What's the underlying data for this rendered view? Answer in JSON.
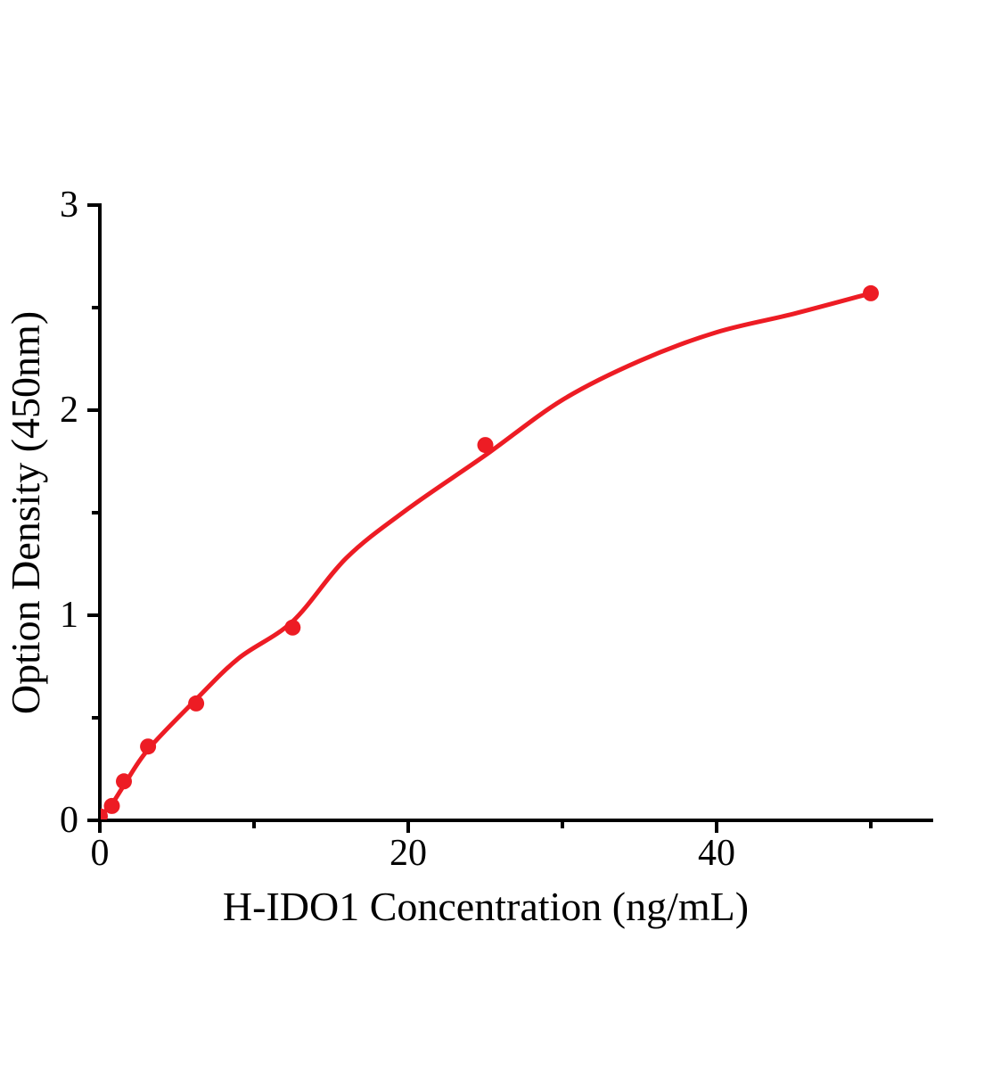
{
  "figure": {
    "background_color": "#ffffff",
    "axis_color": "#000000",
    "accent_color": "#ED1C24"
  },
  "chart_data": {
    "type": "scatter",
    "title": "",
    "xlabel": "H-IDO1 Concentration (ng/mL)",
    "ylabel": "Option Density (450nm)",
    "grid": false,
    "legend": "none",
    "x_axis": {
      "range": [
        0,
        54
      ],
      "major_ticks": [
        {
          "value": 0,
          "label": "0"
        },
        {
          "value": 20,
          "label": "20"
        },
        {
          "value": 40,
          "label": "40"
        }
      ],
      "minor_ticks": [
        10,
        30,
        50
      ]
    },
    "y_axis": {
      "range": [
        0,
        3
      ],
      "major_ticks": [
        {
          "value": 0,
          "label": "0"
        },
        {
          "value": 1,
          "label": "1"
        },
        {
          "value": 2,
          "label": "2"
        },
        {
          "value": 3,
          "label": "3"
        }
      ],
      "minor_ticks": [
        0.5,
        1.5,
        2.5
      ]
    },
    "series": [
      {
        "name": "H-IDO1 standard points",
        "type": "scatter",
        "color": "#ED1C24",
        "marker_radius": 9,
        "points": [
          [
            0,
            0.02
          ],
          [
            0.78,
            0.07
          ],
          [
            1.56,
            0.19
          ],
          [
            3.125,
            0.36
          ],
          [
            6.25,
            0.57
          ],
          [
            12.5,
            0.94
          ],
          [
            25,
            1.83
          ],
          [
            50,
            2.57
          ]
        ]
      },
      {
        "name": "fit curve",
        "type": "line",
        "color": "#ED1C24",
        "stroke_width": 5,
        "points": [
          [
            0,
            0.02
          ],
          [
            0.78,
            0.08
          ],
          [
            1.56,
            0.17
          ],
          [
            3.125,
            0.345
          ],
          [
            6.25,
            0.59
          ],
          [
            9,
            0.79
          ],
          [
            12.5,
            0.97
          ],
          [
            16,
            1.28
          ],
          [
            20,
            1.52
          ],
          [
            25,
            1.78
          ],
          [
            30,
            2.05
          ],
          [
            35,
            2.24
          ],
          [
            40,
            2.38
          ],
          [
            45,
            2.47
          ],
          [
            50,
            2.57
          ]
        ]
      }
    ]
  }
}
